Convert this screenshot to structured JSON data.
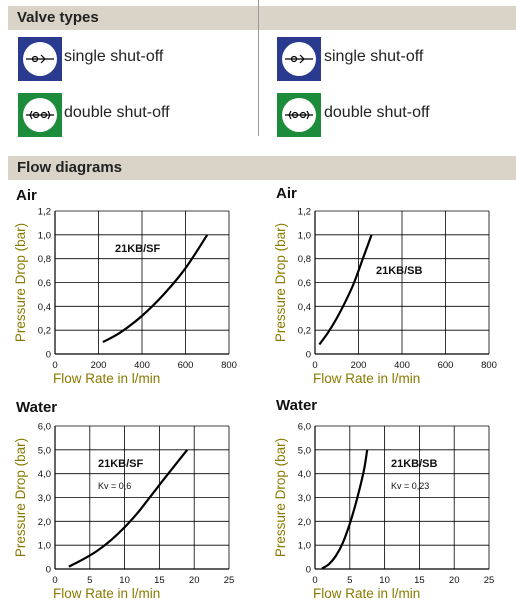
{
  "sections": {
    "valve_types": "Valve types",
    "flow_diagrams": "Flow diagrams"
  },
  "valves": [
    {
      "label": "single shut-off",
      "icon": "single-shut-off-icon",
      "color": "#2a3b8f"
    },
    {
      "label": "double shut-off",
      "icon": "double-shut-off-icon",
      "color": "#1c8c3a"
    },
    {
      "label": "single shut-off",
      "icon": "single-shut-off-icon",
      "color": "#2a3b8f"
    },
    {
      "label": "double shut-off",
      "icon": "double-shut-off-icon",
      "color": "#1c8c3a"
    }
  ],
  "colors": {
    "header_bg": "#d9d4c7",
    "grid": "#000000",
    "curve": "#000000",
    "axis_label": "#8a7a00"
  },
  "chart_data": [
    {
      "type": "line",
      "title": "Air",
      "xlabel": "Flow Rate in l/min",
      "ylabel": "Pressure Drop (bar)",
      "xlim": [
        0,
        800
      ],
      "ylim": [
        0,
        1.2
      ],
      "xticks": [
        "0",
        "200",
        "400",
        "600",
        "800"
      ],
      "yticks": [
        "0",
        "0,2",
        "0,4",
        "0,6",
        "0,8",
        "1,0",
        "1,2"
      ],
      "series": [
        {
          "name": "21KB/SF",
          "x": [
            220,
            300,
            400,
            500,
            600,
            700
          ],
          "y": [
            0.1,
            0.18,
            0.32,
            0.5,
            0.72,
            1.0
          ]
        }
      ],
      "annotations": []
    },
    {
      "type": "line",
      "title": "Air",
      "xlabel": "Flow Rate in l/min",
      "ylabel": "Pressure Drop (bar)",
      "xlim": [
        0,
        800
      ],
      "ylim": [
        0,
        1.2
      ],
      "xticks": [
        "0",
        "200",
        "400",
        "600",
        "800"
      ],
      "yticks": [
        "0",
        "0,2",
        "0,4",
        "0,6",
        "0,8",
        "1,0",
        "1,2"
      ],
      "series": [
        {
          "name": "21KB/SB",
          "x": [
            20,
            60,
            100,
            140,
            180,
            220,
            260
          ],
          "y": [
            0.08,
            0.18,
            0.3,
            0.44,
            0.6,
            0.8,
            1.0
          ]
        }
      ],
      "annotations": []
    },
    {
      "type": "line",
      "title": "Water",
      "xlabel": "Flow Rate in l/min",
      "ylabel": "Pressure Drop (bar)",
      "xlim": [
        0,
        25
      ],
      "ylim": [
        0,
        6
      ],
      "xticks": [
        "0",
        "5",
        "10",
        "15",
        "20",
        "25"
      ],
      "yticks": [
        "0",
        "1,0",
        "2,0",
        "3,0",
        "4,0",
        "5,0",
        "6,0"
      ],
      "series": [
        {
          "name": "21KB/SF",
          "x": [
            2,
            4,
            6,
            8,
            10,
            12,
            14,
            16,
            19
          ],
          "y": [
            0.1,
            0.4,
            0.75,
            1.2,
            1.75,
            2.4,
            3.15,
            3.9,
            5.0
          ]
        }
      ],
      "annotations": [
        "Kv = 0,6"
      ]
    },
    {
      "type": "line",
      "title": "Water",
      "xlabel": "Flow Rate in l/min",
      "ylabel": "Pressure Drop (bar)",
      "xlim": [
        0,
        25
      ],
      "ylim": [
        0,
        6
      ],
      "xticks": [
        "0",
        "5",
        "10",
        "15",
        "20",
        "25"
      ],
      "yticks": [
        "0",
        "1,0",
        "2,0",
        "3,0",
        "4,0",
        "5,0",
        "6,0"
      ],
      "series": [
        {
          "name": "21KB/SB",
          "x": [
            1,
            2,
            3,
            4,
            5,
            6,
            7,
            7.5
          ],
          "y": [
            0.02,
            0.2,
            0.55,
            1.1,
            1.9,
            2.9,
            4.1,
            5.0
          ]
        }
      ],
      "annotations": [
        "Kv = 0,23"
      ]
    }
  ]
}
